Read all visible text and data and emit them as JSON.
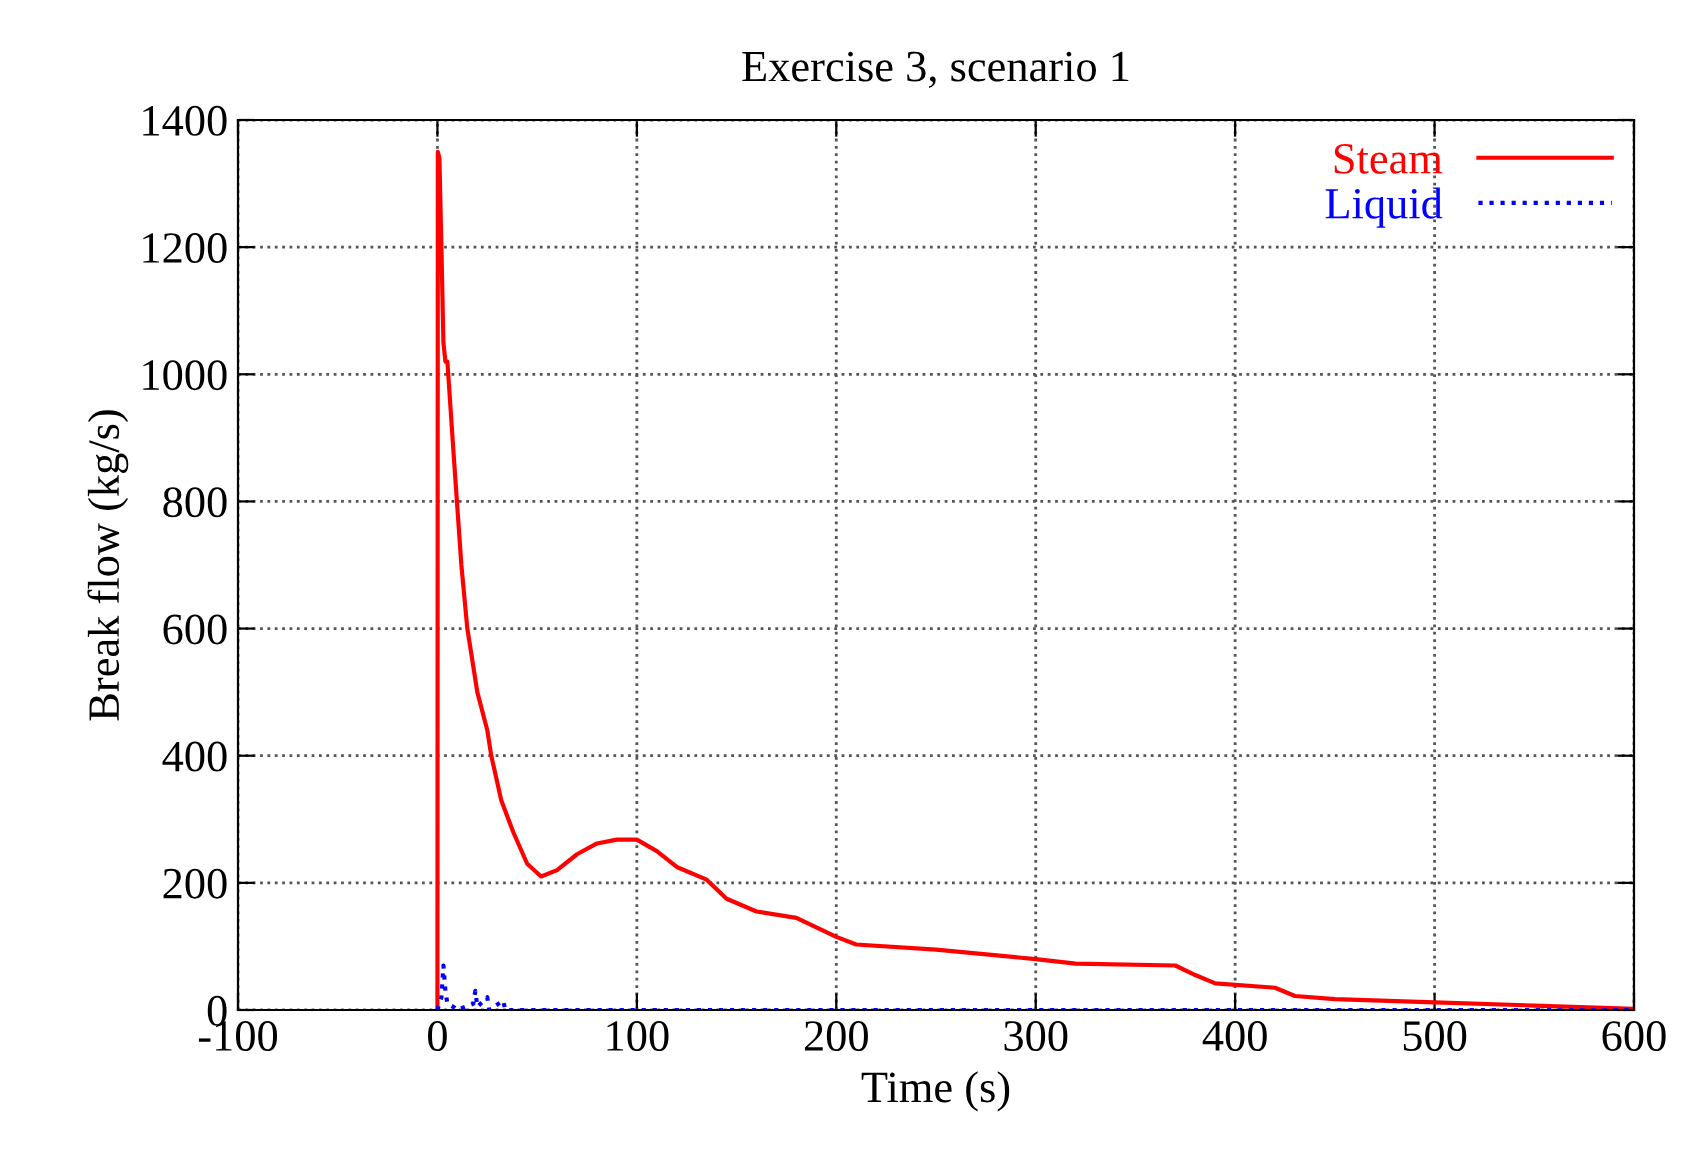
{
  "chart_data": {
    "type": "line",
    "title": "Exercise 3, scenario 1",
    "xlabel": "Time (s)",
    "ylabel": "Break flow (kg/s)",
    "xlim": [
      -100,
      600
    ],
    "xticks": [
      -100,
      0,
      100,
      200,
      300,
      400,
      500,
      600
    ],
    "ylim": [
      0,
      1400
    ],
    "yticks": [
      0,
      200,
      400,
      600,
      800,
      1000,
      1200,
      1400
    ],
    "grid": true,
    "legend": "top right",
    "series": [
      {
        "name": "Steam",
        "color": "#ff0000",
        "line_style": "solid",
        "x": [
          0,
          0.2,
          1,
          2,
          3,
          4,
          5,
          8,
          12,
          15,
          20,
          25,
          27,
          32,
          38,
          45,
          52,
          60,
          70,
          80,
          90,
          100,
          110,
          120,
          135,
          145,
          160,
          180,
          200,
          210,
          250,
          300,
          320,
          370,
          380,
          390,
          420,
          430,
          450,
          500,
          550,
          600
        ],
        "values": [
          0,
          1350,
          1340,
          1200,
          1050,
          1020,
          1020,
          880,
          700,
          600,
          500,
          440,
          400,
          330,
          280,
          230,
          210,
          220,
          245,
          262,
          268,
          268,
          250,
          225,
          205,
          175,
          155,
          145,
          115,
          103,
          95,
          80,
          73,
          70,
          55,
          42,
          35,
          22,
          17,
          12,
          7,
          2
        ]
      },
      {
        "name": "Liquid",
        "color": "#0000ff",
        "line_style": "dotted",
        "x": [
          0,
          2,
          3,
          4,
          5,
          8,
          10,
          18,
          19,
          20,
          25,
          26,
          33,
          34,
          600
        ],
        "values": [
          0,
          20,
          70,
          30,
          10,
          5,
          0,
          10,
          30,
          5,
          20,
          0,
          15,
          0,
          0
        ]
      }
    ]
  }
}
